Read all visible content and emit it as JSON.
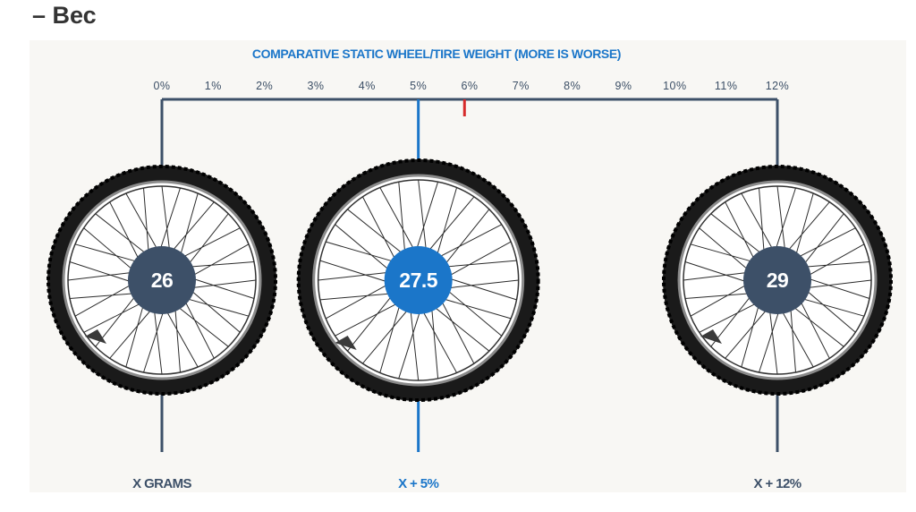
{
  "heading": "– Вес",
  "colors": {
    "accent": "#1b76c9",
    "neutral": "#3d5068",
    "marker": "#d62b2b",
    "background": "#f8f7f4"
  },
  "chart_data": {
    "type": "bar",
    "title": "COMPARATIVE STATIC WHEEL/TIRE WEIGHT (MORE IS WORSE)",
    "axis": {
      "ticks": [
        "0%",
        "1%",
        "2%",
        "3%",
        "4%",
        "5%",
        "6%",
        "7%",
        "8%",
        "9%",
        "10%",
        "11%",
        "12%"
      ],
      "range": [
        0,
        12
      ],
      "unit": "%"
    },
    "categories": [
      "26",
      "27.5",
      "29"
    ],
    "values": [
      0,
      5,
      12
    ],
    "captions": [
      "X GRAMS",
      "X + 5%",
      "X + 12%"
    ],
    "highlight": "27.5",
    "marker_value": 5.9,
    "icon": "bicycle-wheel-icon"
  }
}
